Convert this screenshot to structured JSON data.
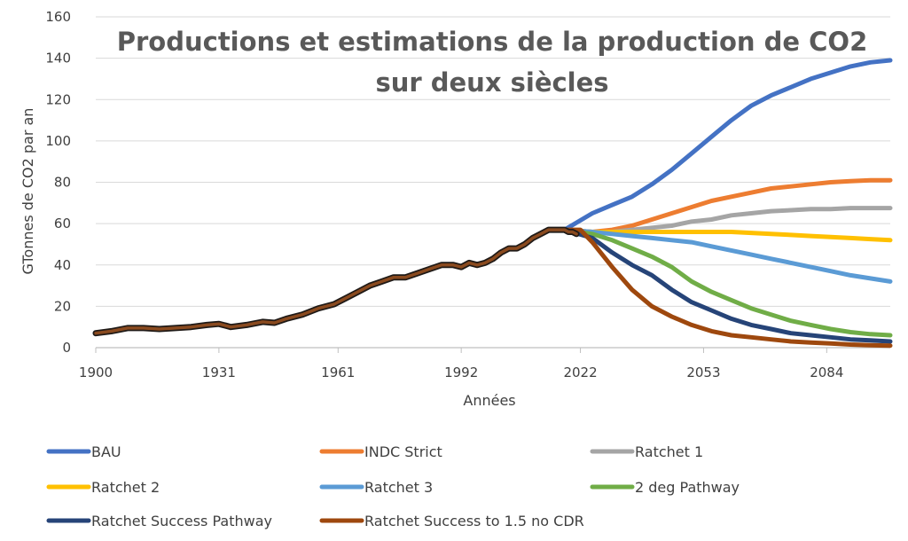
{
  "chart_data": {
    "type": "line",
    "title": [
      "Productions et estimations de la production de CO2",
      "sur deux siècles"
    ],
    "xlabel": "Années",
    "ylabel": "GTonnes de CO2 par an",
    "xlim": [
      1900,
      2100
    ],
    "ylim": [
      0,
      160
    ],
    "x_ticks": [
      1900,
      1931,
      1961,
      1992,
      2022,
      2053,
      2084
    ],
    "y_ticks": [
      0,
      20,
      40,
      60,
      80,
      100,
      120,
      140,
      160
    ],
    "grid": true,
    "legend_position": "bottom",
    "historical": {
      "x": [
        1900,
        1904,
        1908,
        1912,
        1916,
        1920,
        1924,
        1928,
        1931,
        1934,
        1938,
        1942,
        1945,
        1948,
        1952,
        1956,
        1960,
        1963,
        1966,
        1969,
        1972,
        1975,
        1978,
        1981,
        1984,
        1987,
        1990,
        1992,
        1994,
        1996,
        1998,
        2000,
        2002,
        2004,
        2006,
        2008,
        2010,
        2012,
        2014,
        2016,
        2018,
        2019,
        2020,
        2021
      ],
      "y": [
        7,
        8,
        9.5,
        9.5,
        9,
        9.5,
        10,
        11,
        11.5,
        10,
        11,
        12.5,
        12,
        14,
        16,
        19,
        21,
        24,
        27,
        30,
        32,
        34,
        34,
        36,
        38,
        40,
        40,
        39,
        41,
        40,
        41,
        43,
        46,
        48,
        48,
        50,
        53,
        55,
        57,
        57,
        57,
        56,
        56,
        55
      ]
    },
    "series": [
      {
        "name": "BAU",
        "color": "#4472c4",
        "x": [
          2018,
          2025,
          2030,
          2035,
          2040,
          2045,
          2050,
          2055,
          2060,
          2065,
          2070,
          2075,
          2080,
          2085,
          2090,
          2095,
          2100
        ],
        "y": [
          57,
          65,
          69,
          73,
          79,
          86,
          94,
          102,
          110,
          117,
          122,
          126,
          130,
          133,
          136,
          138,
          139
        ]
      },
      {
        "name": "INDC Strict",
        "color": "#ed7d31",
        "x": [
          2018,
          2025,
          2030,
          2035,
          2040,
          2045,
          2050,
          2055,
          2060,
          2065,
          2070,
          2075,
          2080,
          2085,
          2090,
          2095,
          2100
        ],
        "y": [
          57,
          56,
          57,
          59,
          62,
          65,
          68,
          71,
          73,
          75,
          77,
          78,
          79,
          80,
          80.5,
          81,
          81
        ]
      },
      {
        "name": "Ratchet 1",
        "color": "#a5a5a5",
        "x": [
          2018,
          2025,
          2030,
          2035,
          2040,
          2045,
          2050,
          2055,
          2060,
          2065,
          2070,
          2075,
          2080,
          2085,
          2090,
          2095,
          2100
        ],
        "y": [
          57,
          56,
          56,
          57,
          58,
          59,
          61,
          62,
          64,
          65,
          66,
          66.5,
          67,
          67,
          67.5,
          67.5,
          67.5
        ]
      },
      {
        "name": "Ratchet 2",
        "color": "#ffc000",
        "x": [
          2018,
          2025,
          2030,
          2035,
          2040,
          2045,
          2050,
          2055,
          2060,
          2065,
          2070,
          2075,
          2080,
          2085,
          2090,
          2095,
          2100
        ],
        "y": [
          57,
          56,
          56,
          56,
          56,
          56,
          56,
          56,
          56,
          55.5,
          55,
          54.5,
          54,
          53.5,
          53,
          52.5,
          52
        ]
      },
      {
        "name": "Ratchet 3",
        "color": "#5b9bd5",
        "x": [
          2018,
          2025,
          2030,
          2035,
          2040,
          2045,
          2050,
          2055,
          2060,
          2065,
          2070,
          2075,
          2080,
          2085,
          2090,
          2095,
          2100
        ],
        "y": [
          57,
          56,
          55,
          54,
          53,
          52,
          51,
          49,
          47,
          45,
          43,
          41,
          39,
          37,
          35,
          33.5,
          32
        ]
      },
      {
        "name": "2 deg Pathway",
        "color": "#70ad47",
        "x": [
          2018,
          2025,
          2030,
          2035,
          2040,
          2045,
          2050,
          2055,
          2060,
          2065,
          2070,
          2075,
          2080,
          2085,
          2090,
          2095,
          2100
        ],
        "y": [
          57,
          55,
          52,
          48,
          44,
          39,
          32,
          27,
          23,
          19,
          16,
          13,
          11,
          9,
          7.5,
          6.5,
          6
        ]
      },
      {
        "name": "Ratchet Success Pathway",
        "color": "#264478",
        "x": [
          2018,
          2025,
          2030,
          2035,
          2040,
          2045,
          2050,
          2055,
          2060,
          2065,
          2070,
          2075,
          2080,
          2085,
          2090,
          2095,
          2100
        ],
        "y": [
          57,
          53,
          46,
          40,
          35,
          28,
          22,
          18,
          14,
          11,
          9,
          7,
          6,
          5,
          4,
          3.5,
          3
        ]
      },
      {
        "name": "Ratchet Success to 1.5 no CDR",
        "color": "#9e480e",
        "x": [
          2018,
          2022,
          2025,
          2030,
          2035,
          2040,
          2045,
          2050,
          2055,
          2060,
          2065,
          2070,
          2075,
          2080,
          2085,
          2090,
          2095,
          2100
        ],
        "y": [
          57,
          57,
          51,
          39,
          28,
          20,
          15,
          11,
          8,
          6,
          5,
          4,
          3,
          2.5,
          2,
          1.5,
          1.2,
          1
        ]
      }
    ]
  }
}
